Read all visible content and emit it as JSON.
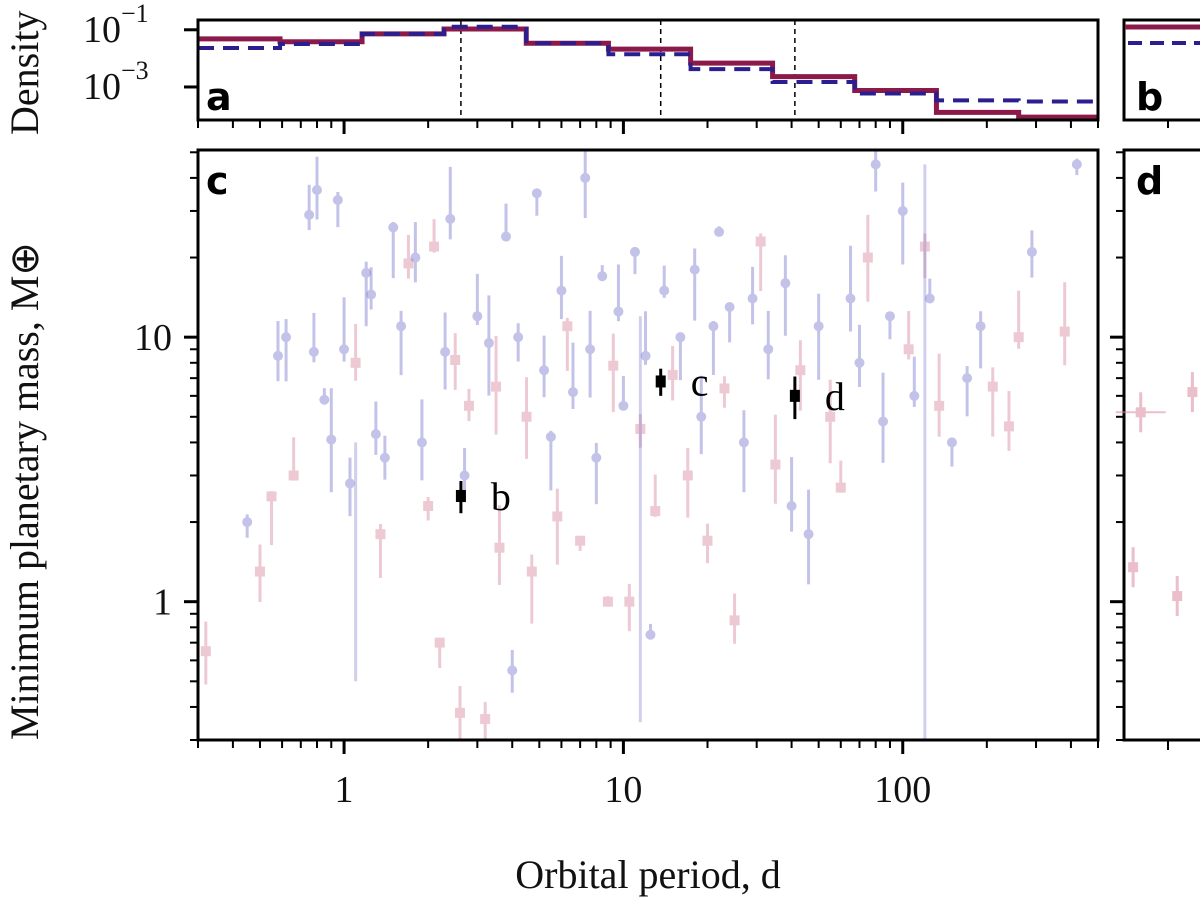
{
  "chart_data": {
    "type": "scatter",
    "title": "",
    "xlabel": "Orbital period, d",
    "ylabel_main": "Minimum planetary mass, M⊕",
    "ylabel_hist": "Density",
    "x_scale": "log",
    "xlim": [
      0.3,
      500
    ],
    "x_ticks": [
      {
        "value": 1,
        "label": "1"
      },
      {
        "value": 10,
        "label": "10"
      },
      {
        "value": 100,
        "label": "100"
      }
    ],
    "panels": {
      "a": {
        "letter": "a",
        "type": "histogram-step",
        "y_scale": "log",
        "ylim": [
          7e-05,
          0.22
        ],
        "y_ticks": [
          {
            "value": 0.1,
            "base": "10",
            "exp": "−1"
          },
          {
            "value": 0.001,
            "base": "10",
            "exp": "−3"
          }
        ],
        "bin_edges": [
          0.3,
          0.59,
          1.16,
          2.28,
          4.49,
          8.84,
          17.4,
          34.2,
          67.3,
          132,
          260,
          500
        ],
        "series": [
          {
            "name": "sample-red",
            "style": "solid",
            "color": "#8b1a4a",
            "values": [
              0.048,
              0.038,
              0.072,
              0.107,
              0.034,
              0.021,
              0.0068,
              0.0023,
              0.00075,
              0.00013,
              8.8e-05
            ]
          },
          {
            "name": "sample-blue",
            "style": "dashed",
            "color": "#2b1f8f",
            "values": [
              0.023,
              0.032,
              0.072,
              0.128,
              0.034,
              0.014,
              0.0042,
              0.0015,
              0.00059,
              0.00034,
              0.00031
            ]
          }
        ],
        "reference_lines": [
          2.62,
          13.6,
          41.1
        ]
      },
      "b": {
        "letter": "b",
        "red_level": "top",
        "blue_level": "slightly below top"
      },
      "c": {
        "letter": "c",
        "y_scale": "log",
        "ylim": [
          0.3,
          51
        ],
        "y_ticks": [
          {
            "value": 1,
            "label": "1"
          },
          {
            "value": 10,
            "label": "10"
          }
        ],
        "highlighted_planets": [
          {
            "label": "b",
            "period": 2.62,
            "mass": 2.51,
            "mass_err": 0.35
          },
          {
            "label": "c",
            "period": 13.6,
            "mass": 6.8,
            "mass_err": 0.8
          },
          {
            "label": "d",
            "period": 41.1,
            "mass": 6.0,
            "mass_err": 1.1
          }
        ],
        "background_series": [
          {
            "name": "population-blue",
            "marker": "circle",
            "color": "#7b7bd0",
            "opacity": 0.45
          },
          {
            "name": "population-red",
            "marker": "square",
            "color": "#d98aa0",
            "opacity": 0.45
          }
        ]
      },
      "d": {
        "letter": "d",
        "visible_points": [
          {
            "rel_x": 0.22,
            "mass": 5.2,
            "xerr": true
          },
          {
            "rel_x": 0.9,
            "mass": 6.2,
            "xerr": false
          },
          {
            "rel_x": 0.12,
            "mass": 1.35,
            "xerr": false
          },
          {
            "rel_x": 0.7,
            "mass": 1.05,
            "xerr": false
          }
        ]
      }
    },
    "population_sample": [
      [
        0.32,
        0.65,
        "r"
      ],
      [
        0.45,
        2.0,
        "b"
      ],
      [
        0.5,
        1.3,
        "r"
      ],
      [
        0.55,
        2.5,
        "r"
      ],
      [
        0.58,
        8.5,
        "b"
      ],
      [
        0.62,
        10,
        "b"
      ],
      [
        0.66,
        3.0,
        "r"
      ],
      [
        0.75,
        29,
        "b"
      ],
      [
        0.78,
        8.8,
        "b"
      ],
      [
        0.8,
        36,
        "b"
      ],
      [
        0.85,
        5.8,
        "b"
      ],
      [
        0.9,
        4.1,
        "b"
      ],
      [
        0.95,
        33,
        "b"
      ],
      [
        1.0,
        9.0,
        "b"
      ],
      [
        1.05,
        2.8,
        "b"
      ],
      [
        1.1,
        8.0,
        "r"
      ],
      [
        1.2,
        17.5,
        "b"
      ],
      [
        1.25,
        14.5,
        "b"
      ],
      [
        1.3,
        4.3,
        "b"
      ],
      [
        1.35,
        1.8,
        "r"
      ],
      [
        1.4,
        3.5,
        "b"
      ],
      [
        1.5,
        26,
        "b"
      ],
      [
        1.6,
        11,
        "b"
      ],
      [
        1.7,
        19,
        "r"
      ],
      [
        1.8,
        20,
        "b"
      ],
      [
        1.9,
        4.0,
        "b"
      ],
      [
        2.0,
        2.3,
        "r"
      ],
      [
        2.1,
        22,
        "r"
      ],
      [
        2.2,
        0.7,
        "r"
      ],
      [
        2.3,
        8.8,
        "b"
      ],
      [
        2.4,
        28,
        "b"
      ],
      [
        2.5,
        8.2,
        "r"
      ],
      [
        2.6,
        0.38,
        "r"
      ],
      [
        2.7,
        3.0,
        "b"
      ],
      [
        2.8,
        5.5,
        "r"
      ],
      [
        3.0,
        12,
        "b"
      ],
      [
        3.2,
        0.36,
        "r"
      ],
      [
        3.3,
        9.5,
        "b"
      ],
      [
        3.5,
        6.5,
        "r"
      ],
      [
        3.6,
        1.6,
        "r"
      ],
      [
        3.8,
        24,
        "b"
      ],
      [
        4.0,
        0.55,
        "b"
      ],
      [
        4.2,
        10,
        "b"
      ],
      [
        4.5,
        5.0,
        "r"
      ],
      [
        4.7,
        1.3,
        "r"
      ],
      [
        4.9,
        35,
        "b"
      ],
      [
        5.2,
        7.5,
        "b"
      ],
      [
        5.5,
        4.2,
        "b"
      ],
      [
        5.8,
        2.1,
        "r"
      ],
      [
        6.0,
        15,
        "b"
      ],
      [
        6.3,
        11,
        "r"
      ],
      [
        6.6,
        6.2,
        "b"
      ],
      [
        7.0,
        1.7,
        "r"
      ],
      [
        7.3,
        40,
        "b"
      ],
      [
        7.6,
        9.0,
        "b"
      ],
      [
        8.0,
        3.5,
        "b"
      ],
      [
        8.4,
        17,
        "b"
      ],
      [
        8.8,
        1.0,
        "r"
      ],
      [
        9.2,
        7.8,
        "r"
      ],
      [
        9.6,
        12.5,
        "b"
      ],
      [
        10,
        5.5,
        "b"
      ],
      [
        10.5,
        1.0,
        "r"
      ],
      [
        11,
        21,
        "b"
      ],
      [
        11.5,
        4.5,
        "r"
      ],
      [
        12,
        8.5,
        "b"
      ],
      [
        12.5,
        0.75,
        "b"
      ],
      [
        13,
        2.2,
        "r"
      ],
      [
        14,
        15,
        "b"
      ],
      [
        15,
        7.2,
        "r"
      ],
      [
        16,
        10,
        "b"
      ],
      [
        17,
        3.0,
        "r"
      ],
      [
        18,
        18,
        "b"
      ],
      [
        19,
        5.0,
        "b"
      ],
      [
        20,
        1.7,
        "r"
      ],
      [
        21,
        11,
        "b"
      ],
      [
        22,
        25,
        "b"
      ],
      [
        23,
        6.4,
        "r"
      ],
      [
        24,
        13,
        "b"
      ],
      [
        25,
        0.85,
        "r"
      ],
      [
        27,
        4.0,
        "b"
      ],
      [
        29,
        14,
        "b"
      ],
      [
        31,
        23,
        "r"
      ],
      [
        33,
        9.0,
        "b"
      ],
      [
        35,
        3.3,
        "r"
      ],
      [
        38,
        16,
        "b"
      ],
      [
        40,
        2.3,
        "b"
      ],
      [
        43,
        7.5,
        "r"
      ],
      [
        46,
        1.8,
        "b"
      ],
      [
        50,
        11,
        "b"
      ],
      [
        55,
        5.0,
        "r"
      ],
      [
        60,
        2.7,
        "r"
      ],
      [
        65,
        14,
        "b"
      ],
      [
        70,
        8.0,
        "b"
      ],
      [
        75,
        20,
        "r"
      ],
      [
        80,
        45,
        "b"
      ],
      [
        85,
        4.8,
        "b"
      ],
      [
        90,
        12,
        "b"
      ],
      [
        100,
        30,
        "b"
      ],
      [
        105,
        9.0,
        "r"
      ],
      [
        110,
        6.0,
        "b"
      ],
      [
        120,
        22,
        "r"
      ],
      [
        125,
        14,
        "b"
      ],
      [
        135,
        5.5,
        "r"
      ],
      [
        150,
        4.0,
        "b"
      ],
      [
        170,
        7.0,
        "b"
      ],
      [
        190,
        11,
        "b"
      ],
      [
        210,
        6.5,
        "r"
      ],
      [
        240,
        4.6,
        "r"
      ],
      [
        260,
        10,
        "r"
      ],
      [
        290,
        21,
        "b"
      ],
      [
        380,
        10.5,
        "r"
      ],
      [
        420,
        45,
        "b"
      ]
    ]
  }
}
